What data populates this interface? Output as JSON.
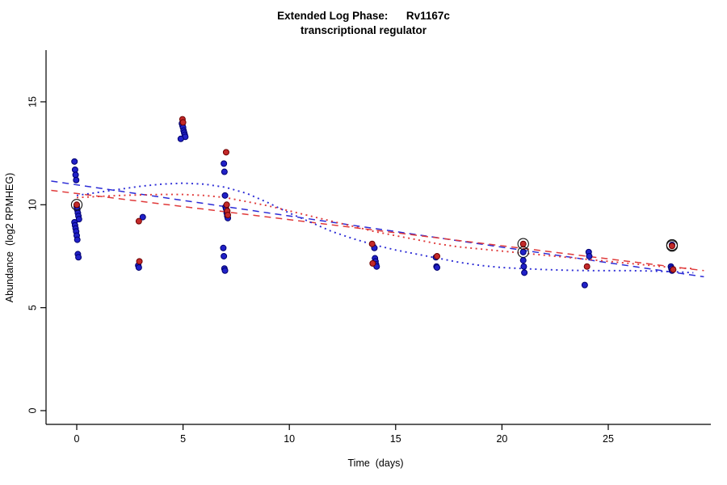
{
  "title": {
    "line1": "Extended Log Phase:      Rv1167c",
    "line2": "transcriptional regulator"
  },
  "axes": {
    "x_label": "Time  (days)",
    "y_label": "Abundance  (log2 RPMHEG)"
  },
  "chart_data": {
    "type": "scatter",
    "title": "Extended Log Phase: Rv1167c transcriptional regulator",
    "xlabel": "Time (days)",
    "ylabel": "Abundance (log2 RPMHEG)",
    "xlim": [
      -1.4,
      29.8
    ],
    "ylim": [
      -0.6,
      17.5
    ],
    "x_ticks": [
      0,
      5,
      10,
      15,
      20,
      25
    ],
    "y_ticks": [
      0,
      5,
      10,
      15
    ],
    "colors": {
      "blue_fill": "#2121C8",
      "blue_edge": "#00006E",
      "red_fill": "#C32A2A",
      "red_edge": "#6E0000",
      "blue_line": "#2C2CD6",
      "red_line": "#E03A3A",
      "axis": "#000000",
      "highlight_ring": "#111111"
    },
    "series": [
      {
        "name": "blue",
        "color": "#2121C8",
        "edge": "#00006E",
        "points": [
          [
            0,
            12.1
          ],
          [
            0,
            11.7
          ],
          [
            0,
            11.45
          ],
          [
            0,
            11.2
          ],
          [
            0,
            9.9
          ],
          [
            0,
            9.75
          ],
          [
            0,
            9.6
          ],
          [
            0,
            9.45
          ],
          [
            0,
            9.3
          ],
          [
            0,
            9.15
          ],
          [
            0,
            9.0
          ],
          [
            0,
            8.85
          ],
          [
            0,
            8.7
          ],
          [
            0,
            8.5
          ],
          [
            0,
            8.3
          ],
          [
            0,
            7.6
          ],
          [
            0,
            7.45
          ],
          [
            3,
            9.4
          ],
          [
            3,
            7.05
          ],
          [
            3,
            6.95
          ],
          [
            5,
            13.95
          ],
          [
            5,
            13.85
          ],
          [
            5,
            13.75
          ],
          [
            5,
            13.6
          ],
          [
            5,
            13.5
          ],
          [
            5,
            13.4
          ],
          [
            5,
            13.3
          ],
          [
            5,
            13.2
          ],
          [
            7,
            12.0
          ],
          [
            7,
            11.6
          ],
          [
            7,
            10.45
          ],
          [
            7,
            9.9
          ],
          [
            7,
            9.8
          ],
          [
            7,
            9.6
          ],
          [
            7,
            9.45
          ],
          [
            7,
            9.35
          ],
          [
            7,
            7.9
          ],
          [
            7,
            7.5
          ],
          [
            7,
            6.9
          ],
          [
            7,
            6.8
          ],
          [
            14,
            7.9
          ],
          [
            14,
            7.4
          ],
          [
            14,
            7.25
          ],
          [
            14,
            7.1
          ],
          [
            14,
            7.0
          ],
          [
            17,
            7.45
          ],
          [
            17,
            7.0
          ],
          [
            17,
            6.95
          ],
          [
            21,
            7.7
          ],
          [
            21,
            7.3
          ],
          [
            21,
            7.0
          ],
          [
            21,
            6.7
          ],
          [
            24,
            7.7
          ],
          [
            24,
            7.5
          ],
          [
            24,
            6.1
          ],
          [
            28,
            8.05
          ],
          [
            28,
            7.0
          ],
          [
            28,
            6.9
          ],
          [
            28,
            6.8
          ]
        ]
      },
      {
        "name": "red",
        "color": "#C32A2A",
        "edge": "#6E0000",
        "points": [
          [
            0,
            10.0
          ],
          [
            3,
            9.2
          ],
          [
            3,
            7.25
          ],
          [
            5,
            14.15
          ],
          [
            5,
            14.0
          ],
          [
            7,
            12.55
          ],
          [
            7,
            10.0
          ],
          [
            7,
            9.7
          ],
          [
            7,
            9.5
          ],
          [
            14,
            8.1
          ],
          [
            14,
            7.15
          ],
          [
            17,
            7.5
          ],
          [
            21,
            8.1
          ],
          [
            24,
            7.0
          ],
          [
            28,
            8.0
          ],
          [
            28,
            6.85
          ]
        ]
      }
    ],
    "highlighted_points": [
      {
        "x": 0,
        "y": 10.0,
        "series": "red"
      },
      {
        "x": 21,
        "y": 8.1,
        "series": "red"
      },
      {
        "x": 21,
        "y": 7.7,
        "series": "blue"
      },
      {
        "x": 28,
        "y": 8.05,
        "series": "blue"
      },
      {
        "x": 28,
        "y": 8.0,
        "series": "red"
      }
    ],
    "trend_lines": [
      {
        "name": "blue-dashed-linear-fit",
        "color": "#2C2CD6",
        "style": "dashed",
        "points": [
          [
            -1.2,
            11.15
          ],
          [
            29.5,
            6.5
          ]
        ]
      },
      {
        "name": "red-dashed-linear-fit",
        "color": "#E03A3A",
        "style": "dashed",
        "points": [
          [
            -1.2,
            10.7
          ],
          [
            29.5,
            6.8
          ]
        ]
      }
    ],
    "smooth_curves": [
      {
        "name": "blue-dotted-smoother",
        "color": "#2C2CD6",
        "style": "dotted",
        "points": [
          [
            0,
            10.45
          ],
          [
            1,
            10.6
          ],
          [
            2,
            10.75
          ],
          [
            3,
            10.9
          ],
          [
            4,
            11.0
          ],
          [
            5,
            11.05
          ],
          [
            6,
            11.0
          ],
          [
            7,
            10.85
          ],
          [
            8,
            10.55
          ],
          [
            9,
            10.1
          ],
          [
            10,
            9.6
          ],
          [
            11,
            9.15
          ],
          [
            12,
            8.7
          ],
          [
            13,
            8.35
          ],
          [
            14,
            8.05
          ],
          [
            15,
            7.8
          ],
          [
            16,
            7.6
          ],
          [
            17,
            7.4
          ],
          [
            18,
            7.2
          ],
          [
            19,
            7.05
          ],
          [
            20,
            6.95
          ],
          [
            21,
            6.9
          ],
          [
            22,
            6.85
          ],
          [
            23,
            6.82
          ],
          [
            24,
            6.8
          ],
          [
            25,
            6.8
          ],
          [
            26,
            6.8
          ],
          [
            27,
            6.78
          ],
          [
            28,
            6.75
          ],
          [
            29,
            6.7
          ]
        ]
      },
      {
        "name": "red-dotted-smoother",
        "color": "#E03A3A",
        "style": "dotted",
        "points": [
          [
            0,
            10.35
          ],
          [
            1,
            10.4
          ],
          [
            2,
            10.45
          ],
          [
            3,
            10.48
          ],
          [
            4,
            10.5
          ],
          [
            5,
            10.5
          ],
          [
            6,
            10.45
          ],
          [
            7,
            10.35
          ],
          [
            8,
            10.15
          ],
          [
            9,
            9.95
          ],
          [
            10,
            9.7
          ],
          [
            11,
            9.45
          ],
          [
            12,
            9.2
          ],
          [
            13,
            8.95
          ],
          [
            14,
            8.7
          ],
          [
            15,
            8.5
          ],
          [
            16,
            8.3
          ],
          [
            17,
            8.1
          ],
          [
            18,
            7.95
          ],
          [
            19,
            7.85
          ],
          [
            20,
            7.75
          ],
          [
            21,
            7.65
          ],
          [
            22,
            7.55
          ],
          [
            23,
            7.45
          ],
          [
            24,
            7.35
          ],
          [
            25,
            7.25
          ],
          [
            26,
            7.15
          ],
          [
            27,
            7.05
          ],
          [
            28,
            6.95
          ],
          [
            29,
            6.9
          ]
        ]
      }
    ]
  }
}
